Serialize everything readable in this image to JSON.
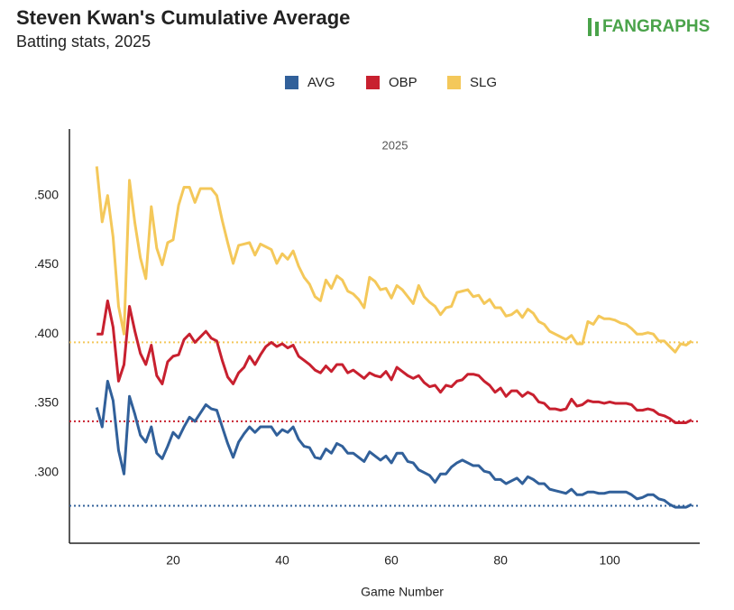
{
  "chart_data": {
    "type": "line",
    "title": "Steven Kwan's Cumulative Average",
    "subtitle": "Batting stats, 2025",
    "logo": "FANGRAPHS",
    "panel_label": "2025",
    "x_label": "Game Number",
    "xlim": [
      1,
      116.5
    ],
    "xticks": [
      20,
      40,
      60,
      80,
      100
    ],
    "ylim": [
      0.249,
      0.548
    ],
    "yticks": [
      {
        "value": 0.3,
        "label": ".300"
      },
      {
        "value": 0.35,
        "label": ".350"
      },
      {
        "value": 0.4,
        "label": ".400"
      },
      {
        "value": 0.45,
        "label": ".450"
      },
      {
        "value": 0.5,
        "label": ".500"
      }
    ],
    "legend": "top",
    "hlines": [
      0.276,
      0.337,
      0.394
    ],
    "x": [
      6,
      7,
      8,
      9,
      10,
      11,
      12,
      13,
      14,
      15,
      16,
      17,
      18,
      19,
      20,
      21,
      22,
      23,
      24,
      25,
      26,
      27,
      28,
      29,
      30,
      31,
      32,
      33,
      34,
      35,
      36,
      37,
      38,
      39,
      40,
      41,
      42,
      43,
      44,
      45,
      46,
      47,
      48,
      49,
      50,
      51,
      52,
      53,
      54,
      55,
      56,
      57,
      58,
      59,
      60,
      61,
      62,
      63,
      64,
      65,
      66,
      67,
      68,
      69,
      70,
      71,
      72,
      73,
      74,
      75,
      76,
      77,
      78,
      79,
      80,
      81,
      82,
      83,
      84,
      85,
      86,
      87,
      88,
      89,
      90,
      91,
      92,
      93,
      94,
      95,
      96,
      97,
      98,
      99,
      100,
      101,
      102,
      103,
      104,
      105,
      106,
      107,
      108,
      109,
      110,
      111,
      112,
      113,
      114,
      115
    ],
    "series": [
      {
        "name": "AVG",
        "color": "#31609a",
        "values": [
          0.347,
          0.333,
          0.366,
          0.352,
          0.316,
          0.299,
          0.355,
          0.342,
          0.327,
          0.322,
          0.333,
          0.314,
          0.31,
          0.319,
          0.329,
          0.325,
          0.333,
          0.34,
          0.337,
          0.343,
          0.349,
          0.346,
          0.345,
          0.333,
          0.321,
          0.311,
          0.322,
          0.328,
          0.333,
          0.329,
          0.333,
          0.333,
          0.333,
          0.327,
          0.331,
          0.329,
          0.333,
          0.324,
          0.319,
          0.318,
          0.311,
          0.31,
          0.317,
          0.314,
          0.321,
          0.319,
          0.314,
          0.314,
          0.311,
          0.308,
          0.315,
          0.312,
          0.309,
          0.312,
          0.307,
          0.314,
          0.314,
          0.308,
          0.307,
          0.302,
          0.3,
          0.298,
          0.293,
          0.299,
          0.299,
          0.304,
          0.307,
          0.309,
          0.307,
          0.305,
          0.305,
          0.301,
          0.3,
          0.295,
          0.295,
          0.292,
          0.294,
          0.296,
          0.292,
          0.297,
          0.295,
          0.292,
          0.292,
          0.288,
          0.287,
          0.286,
          0.285,
          0.288,
          0.284,
          0.284,
          0.286,
          0.286,
          0.285,
          0.285,
          0.286,
          0.286,
          0.286,
          0.286,
          0.284,
          0.281,
          0.282,
          0.284,
          0.284,
          0.281,
          0.28,
          0.277,
          0.275,
          0.275,
          0.275,
          0.277
        ]
      },
      {
        "name": "OBP",
        "color": "#c8202f",
        "values": [
          0.4,
          0.4,
          0.424,
          0.405,
          0.366,
          0.378,
          0.42,
          0.402,
          0.386,
          0.378,
          0.392,
          0.37,
          0.364,
          0.38,
          0.384,
          0.385,
          0.396,
          0.4,
          0.394,
          0.398,
          0.402,
          0.397,
          0.395,
          0.381,
          0.369,
          0.364,
          0.372,
          0.376,
          0.384,
          0.378,
          0.385,
          0.391,
          0.394,
          0.391,
          0.393,
          0.39,
          0.392,
          0.384,
          0.381,
          0.378,
          0.374,
          0.372,
          0.377,
          0.373,
          0.378,
          0.378,
          0.372,
          0.374,
          0.371,
          0.368,
          0.372,
          0.37,
          0.369,
          0.373,
          0.367,
          0.376,
          0.373,
          0.37,
          0.368,
          0.37,
          0.365,
          0.362,
          0.363,
          0.358,
          0.363,
          0.362,
          0.366,
          0.367,
          0.371,
          0.371,
          0.37,
          0.366,
          0.363,
          0.358,
          0.361,
          0.355,
          0.359,
          0.359,
          0.355,
          0.358,
          0.356,
          0.351,
          0.35,
          0.346,
          0.346,
          0.345,
          0.346,
          0.353,
          0.348,
          0.349,
          0.352,
          0.351,
          0.351,
          0.35,
          0.351,
          0.35,
          0.35,
          0.35,
          0.349,
          0.345,
          0.345,
          0.346,
          0.345,
          0.342,
          0.341,
          0.339,
          0.336,
          0.336,
          0.336,
          0.338
        ]
      },
      {
        "name": "SLG",
        "color": "#f4c85a",
        "values": [
          0.521,
          0.481,
          0.5,
          0.47,
          0.42,
          0.4,
          0.511,
          0.48,
          0.455,
          0.44,
          0.492,
          0.462,
          0.45,
          0.466,
          0.468,
          0.493,
          0.506,
          0.506,
          0.495,
          0.505,
          0.505,
          0.505,
          0.5,
          0.482,
          0.466,
          0.451,
          0.464,
          0.465,
          0.466,
          0.457,
          0.465,
          0.463,
          0.461,
          0.451,
          0.458,
          0.454,
          0.46,
          0.449,
          0.441,
          0.436,
          0.427,
          0.424,
          0.439,
          0.433,
          0.442,
          0.439,
          0.431,
          0.429,
          0.425,
          0.419,
          0.441,
          0.438,
          0.432,
          0.433,
          0.426,
          0.435,
          0.432,
          0.427,
          0.422,
          0.435,
          0.427,
          0.423,
          0.42,
          0.414,
          0.419,
          0.42,
          0.43,
          0.431,
          0.432,
          0.427,
          0.428,
          0.422,
          0.425,
          0.419,
          0.419,
          0.413,
          0.414,
          0.417,
          0.412,
          0.418,
          0.415,
          0.409,
          0.407,
          0.402,
          0.4,
          0.398,
          0.396,
          0.399,
          0.393,
          0.393,
          0.409,
          0.407,
          0.413,
          0.411,
          0.411,
          0.41,
          0.408,
          0.407,
          0.404,
          0.4,
          0.4,
          0.401,
          0.4,
          0.395,
          0.395,
          0.391,
          0.387,
          0.393,
          0.392,
          0.395
        ]
      }
    ]
  }
}
